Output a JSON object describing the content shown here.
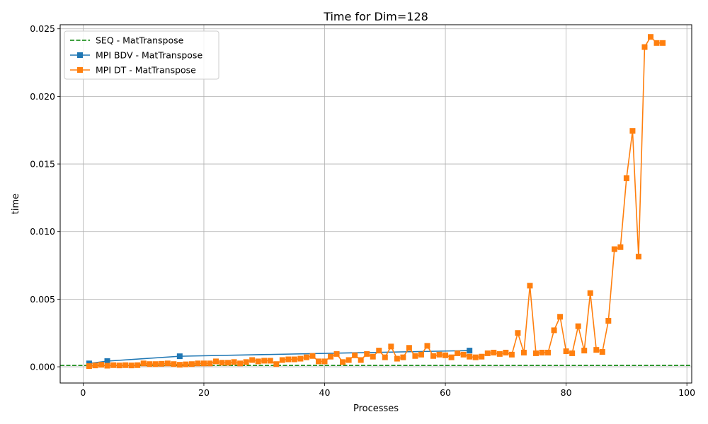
{
  "chart_data": {
    "type": "line",
    "title": "Time for Dim=128",
    "xlabel": "Processes",
    "ylabel": "time",
    "xlim": [
      -3.8,
      100.8
    ],
    "ylim": [
      -0.0012,
      0.0253
    ],
    "xticks": [
      0,
      20,
      40,
      60,
      80,
      100
    ],
    "yticks": [
      0.0,
      0.005,
      0.01,
      0.015,
      0.02,
      0.025
    ],
    "ytick_labels": [
      "0.000",
      "0.005",
      "0.010",
      "0.015",
      "0.020",
      "0.025"
    ],
    "grid": true,
    "legend_position": "top-left",
    "series": [
      {
        "name": "SEQ - MatTranspose",
        "kind": "hline",
        "color": "#008000",
        "y": 0.0001
      },
      {
        "name": "MPI BDV - MatTranspose",
        "kind": "line",
        "color": "#1f77b4",
        "x": [
          1,
          4,
          16,
          64
        ],
        "y": [
          0.00025,
          0.00042,
          0.00078,
          0.0012
        ]
      },
      {
        "name": "MPI DT - MatTranspose",
        "kind": "line",
        "color": "#ff7f0e",
        "x": [
          1,
          2,
          3,
          4,
          5,
          6,
          7,
          8,
          9,
          10,
          11,
          12,
          13,
          14,
          15,
          16,
          17,
          18,
          19,
          20,
          21,
          22,
          23,
          24,
          25,
          26,
          27,
          28,
          29,
          30,
          31,
          32,
          33,
          34,
          35,
          36,
          37,
          38,
          39,
          40,
          41,
          42,
          43,
          44,
          45,
          46,
          47,
          48,
          49,
          50,
          51,
          52,
          53,
          54,
          55,
          56,
          57,
          58,
          59,
          60,
          61,
          62,
          63,
          64,
          65,
          66,
          67,
          68,
          69,
          70,
          71,
          72,
          73,
          74,
          75,
          76,
          77,
          78,
          79,
          80,
          81,
          82,
          83,
          84,
          85,
          86,
          87,
          88,
          89,
          90,
          91,
          92,
          93,
          94,
          95,
          96
        ],
        "y": [
          5e-05,
          0.0001,
          0.00015,
          8e-05,
          0.00012,
          0.0001,
          0.00012,
          0.0001,
          0.00012,
          0.00025,
          0.0002,
          0.0002,
          0.00022,
          0.00025,
          0.0002,
          0.00015,
          0.00018,
          0.0002,
          0.00025,
          0.00025,
          0.00025,
          0.0004,
          0.0003,
          0.0003,
          0.00035,
          0.00025,
          0.00035,
          0.0005,
          0.0004,
          0.00045,
          0.00045,
          0.0002,
          0.0005,
          0.00055,
          0.00055,
          0.0006,
          0.0007,
          0.0008,
          0.0004,
          0.0004,
          0.00075,
          0.00095,
          0.00035,
          0.0005,
          0.00085,
          0.0005,
          0.00095,
          0.00075,
          0.0012,
          0.0007,
          0.0015,
          0.0006,
          0.0007,
          0.0014,
          0.0008,
          0.0009,
          0.00155,
          0.0008,
          0.0009,
          0.00085,
          0.0007,
          0.001,
          0.0009,
          0.00075,
          0.0007,
          0.00075,
          0.001,
          0.00105,
          0.00095,
          0.00105,
          0.0009,
          0.0025,
          0.00105,
          0.006,
          0.001,
          0.00105,
          0.00105,
          0.0027,
          0.0037,
          0.00115,
          0.001,
          0.003,
          0.0012,
          0.00545,
          0.00125,
          0.0011,
          0.0034,
          0.0087,
          0.00885,
          0.01395,
          0.01745,
          0.00815,
          0.02365,
          0.0244,
          0.02395,
          0.02395
        ]
      }
    ]
  }
}
